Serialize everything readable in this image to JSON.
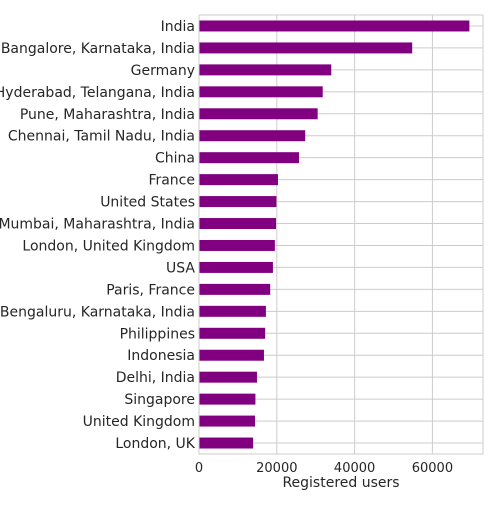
{
  "chart_data": {
    "type": "bar",
    "orientation": "horizontal",
    "title": "",
    "xlabel": "Registered users",
    "ylabel": "",
    "xlim": [
      0,
      73000
    ],
    "xticks": [
      0,
      20000,
      40000,
      60000
    ],
    "grid": true,
    "bar_color": "#800080",
    "categories": [
      "India",
      "Bangalore, Karnataka, India",
      "Germany",
      "Hyderabad, Telangana, India",
      "Pune, Maharashtra, India",
      "Chennai, Tamil Nadu, India",
      "China",
      "France",
      "United States",
      "Mumbai, Maharashtra, India",
      "London, United Kingdom",
      "USA",
      "Paris, France",
      "Bengaluru, Karnataka, India",
      "Philippines",
      "Indonesia",
      "Delhi, India",
      "Singapore",
      "United Kingdom",
      "London, UK"
    ],
    "values": [
      69500,
      54800,
      34000,
      31800,
      30500,
      27300,
      25700,
      20300,
      19900,
      19800,
      19500,
      19000,
      18300,
      17200,
      17000,
      16700,
      14900,
      14500,
      14400,
      13900
    ]
  }
}
